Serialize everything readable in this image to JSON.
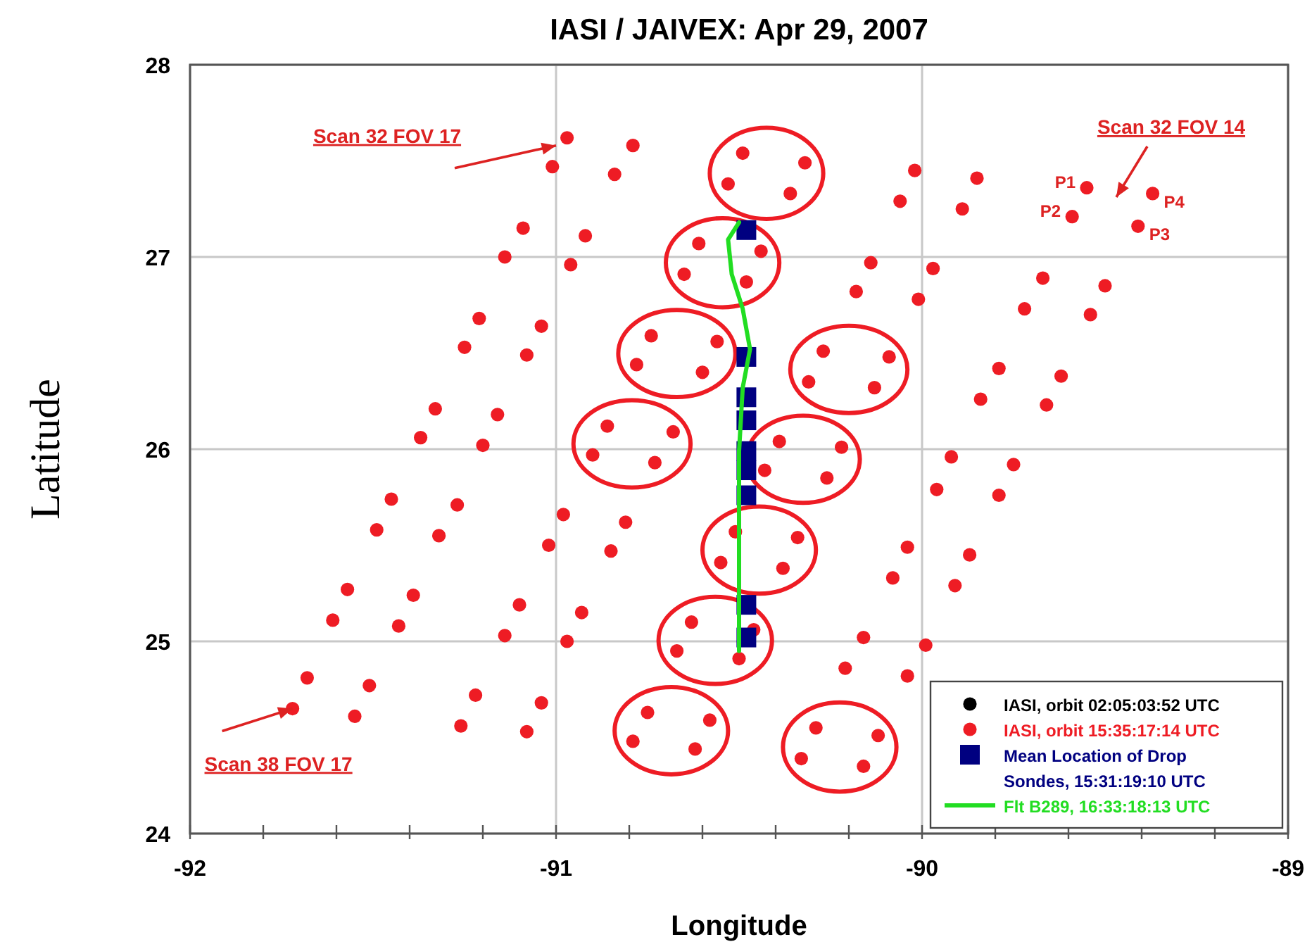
{
  "chart_data": {
    "type": "scatter",
    "title": "IASI / JAIVEX: Apr 29, 2007",
    "xlabel": "Longitude",
    "ylabel": "Latitude",
    "xlim": [
      -92,
      -89
    ],
    "ylim": [
      24,
      28
    ],
    "xticks": [
      -92,
      {
        "value": -91.8,
        "label": null
      },
      {
        "value": -91.6,
        "label": null
      },
      {
        "value": -91.4,
        "label": null
      },
      {
        "value": -91.2,
        "label": null
      },
      -91,
      {
        "value": -90.8,
        "label": null
      },
      {
        "value": -90.6,
        "label": null
      },
      {
        "value": -90.4,
        "label": null
      },
      {
        "value": -90.2,
        "label": null
      },
      -90,
      {
        "value": -89.8,
        "label": null
      },
      {
        "value": -89.6,
        "label": null
      },
      {
        "value": -89.4,
        "label": null
      },
      {
        "value": -89.2,
        "label": null
      },
      -89
    ],
    "yticks": [
      24,
      25,
      26,
      27,
      28
    ],
    "grid": true,
    "legend": "bottom right",
    "series": [
      {
        "name": "IASI, orbit 02:05:03:52 UTC",
        "color": "#000000",
        "marker": "circle"
      },
      {
        "name": "IASI, orbit 15:35:17:14 UTC",
        "color": "#ee1c24",
        "marker": "circle",
        "x": [
          -90.97,
          -90.79,
          -91.01,
          -90.84,
          -91.09,
          -90.92,
          -91.14,
          -90.96,
          -91.21,
          -91.04,
          -91.25,
          -91.08,
          -91.33,
          -91.16,
          -91.37,
          -91.2,
          -91.45,
          -91.27,
          -91.49,
          -91.32,
          -91.57,
          -91.39,
          -91.61,
          -91.43,
          -91.68,
          -91.51,
          -91.72,
          -91.55,
          -90.49,
          -90.32,
          -90.53,
          -90.36,
          -90.61,
          -90.44,
          -90.65,
          -90.48,
          -90.74,
          -90.56,
          -90.78,
          -90.6,
          -90.86,
          -90.68,
          -90.9,
          -90.73,
          -90.98,
          -90.81,
          -91.02,
          -90.85,
          -91.1,
          -90.93,
          -91.14,
          -90.97,
          -91.22,
          -91.04,
          -91.26,
          -91.08,
          -90.02,
          -89.85,
          -90.06,
          -89.89,
          -90.14,
          -89.97,
          -90.18,
          -90.01,
          -90.27,
          -90.09,
          -90.31,
          -90.13,
          -90.39,
          -90.22,
          -90.43,
          -90.26,
          -90.51,
          -90.34,
          -90.55,
          -90.38,
          -90.63,
          -90.46,
          -90.67,
          -90.5,
          -90.75,
          -90.58,
          -90.79,
          -90.62,
          -89.55,
          -89.37,
          -89.59,
          -89.41,
          -89.67,
          -89.5,
          -89.72,
          -89.54,
          -89.79,
          -89.62,
          -89.84,
          -89.66,
          -89.92,
          -89.75,
          -89.96,
          -89.79,
          -90.04,
          -89.87,
          -90.08,
          -89.91,
          -90.16,
          -89.99,
          -90.21,
          -90.04,
          -90.29,
          -90.12,
          -90.33,
          -90.16
        ],
        "values": [
          27.62,
          27.58,
          27.47,
          27.43,
          27.15,
          27.11,
          27.0,
          26.96,
          26.68,
          26.64,
          26.53,
          26.49,
          26.21,
          26.18,
          26.06,
          26.02,
          25.74,
          25.71,
          25.58,
          25.55,
          25.27,
          25.24,
          25.11,
          25.08,
          24.81,
          24.77,
          24.65,
          24.61,
          27.54,
          27.49,
          27.38,
          27.33,
          27.07,
          27.03,
          26.91,
          26.87,
          26.59,
          26.56,
          26.44,
          26.4,
          26.12,
          26.09,
          25.97,
          25.93,
          25.66,
          25.62,
          25.5,
          25.47,
          25.19,
          25.15,
          25.03,
          25.0,
          24.72,
          24.68,
          24.56,
          24.53,
          27.45,
          27.41,
          27.29,
          27.25,
          26.97,
          26.94,
          26.82,
          26.78,
          26.51,
          26.48,
          26.35,
          26.32,
          26.04,
          26.01,
          25.89,
          25.85,
          25.57,
          25.54,
          25.41,
          25.38,
          25.1,
          25.06,
          24.95,
          24.91,
          24.63,
          24.59,
          24.48,
          24.44,
          27.36,
          27.33,
          27.21,
          27.16,
          26.89,
          26.85,
          26.73,
          26.7,
          26.42,
          26.38,
          26.26,
          26.23,
          25.96,
          25.92,
          25.79,
          25.76,
          25.49,
          25.45,
          25.33,
          25.29,
          25.02,
          24.98,
          24.86,
          24.82,
          24.55,
          24.51,
          24.39,
          24.35
        ]
      },
      {
        "name": "Mean Location of Drop Sondes, 15:31:19:10 UTC",
        "color": "#000080",
        "marker": "square",
        "x": [
          -90.48,
          -90.48,
          -90.48,
          -90.48,
          -90.48,
          -90.48,
          -90.48,
          -90.48,
          -90.48
        ],
        "values": [
          27.14,
          26.48,
          26.27,
          26.15,
          25.99,
          25.89,
          25.76,
          25.19,
          25.02
        ]
      },
      {
        "name": "Flt B289, 16:33:18:13 UTC",
        "type": "line",
        "color": "#22dd22",
        "marker": "none",
        "x": [
          -90.5,
          -90.53,
          -90.52,
          -90.49,
          -90.47,
          -90.49,
          -90.5,
          -90.5,
          -90.5
        ],
        "values": [
          27.18,
          27.09,
          26.91,
          26.73,
          26.52,
          26.32,
          25.99,
          25.55,
          24.95
        ]
      }
    ],
    "annotations": [
      {
        "text": "Scan 32 FOV 17",
        "x": -91.0,
        "y": 27.58
      },
      "Scan 32 FOV 14",
      {
        "text": "Scan 38 FOV 17",
        "x": -91.72,
        "y": 24.65
      },
      {
        "text": "P1",
        "x": -89.55,
        "y": 27.36
      },
      {
        "text": "P2",
        "x": -89.59,
        "y": 27.21
      },
      {
        "text": "P3",
        "x": -89.41,
        "y": 27.16
      },
      {
        "text": "P4",
        "x": -89.37,
        "y": 27.33
      }
    ]
  }
}
